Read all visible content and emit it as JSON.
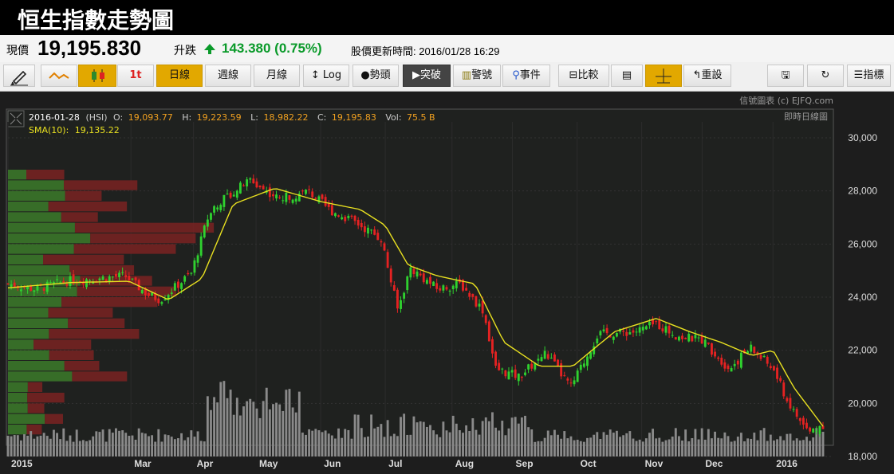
{
  "header": {
    "title": "恒生指數走勢圖"
  },
  "quote": {
    "price_label": "現價",
    "price": "19,195.830",
    "change_label": "升跌",
    "change": "143.380 (0.75%)",
    "update_label": "股價更新時間: 2016/01/28 16:29"
  },
  "toolbar": {
    "buttons": [
      "日線",
      "週線",
      "月線",
      "Log",
      "勢頭",
      "突破",
      "警號",
      "事件",
      "比較",
      "重設",
      "指標"
    ],
    "candle_label": "1t"
  },
  "chart_meta": {
    "credit": "信號圖表 (c) EJFQ.com",
    "chart_mode": "即時日線圖",
    "ohlc_line": {
      "date": "2016-01-28",
      "symbol": "(HSI)",
      "o_label": "O:",
      "o": "19,093.77",
      "h_label": "H:",
      "h": "19,223.59",
      "l_label": "L:",
      "l": "18,982.22",
      "c_label": "C:",
      "c": "19,195.83",
      "vol_label": "Vol:",
      "vol": "75.5 B"
    },
    "sma_label": "SMA(10):",
    "sma_value": "19,135.22"
  },
  "colors": {
    "up": "#2fd12f",
    "down": "#e52222",
    "sma": "#e8e020",
    "vp_up": "#3c7a2a",
    "vp_down": "#7a2222",
    "volume": "#8a8a8a"
  },
  "chart_data": {
    "type": "candlestick",
    "series": [
      {
        "name": "HSI"
      },
      {
        "name": "SMA(10)"
      }
    ],
    "ylim": [
      18000,
      30000
    ],
    "y_ticks": [
      "18,000",
      "20,000",
      "22,000",
      "24,000",
      "26,000",
      "28,000",
      "30,000"
    ],
    "x_ticks": [
      "2015",
      "Mar",
      "Apr",
      "May",
      "Jun",
      "Jul",
      "Aug",
      "Sep",
      "Oct",
      "Nov",
      "Dec",
      "2016"
    ],
    "x_range": [
      "2015-01-02",
      "2016-01-28"
    ],
    "month_starts": [
      "2015-01-02",
      "2015-03-02",
      "2015-04-01",
      "2015-05-01",
      "2015-06-01",
      "2015-07-02",
      "2015-08-03",
      "2015-09-01",
      "2015-10-02",
      "2015-11-02",
      "2015-12-01",
      "2016-01-04"
    ],
    "close_path": [
      [
        "2015-01-02",
        24500
      ],
      [
        "2015-01-15",
        24300
      ],
      [
        "2015-01-30",
        24600
      ],
      [
        "2015-02-12",
        24700
      ],
      [
        "2015-02-27",
        24800
      ],
      [
        "2015-03-10",
        24100
      ],
      [
        "2015-03-16",
        23900
      ],
      [
        "2015-03-31",
        24900
      ],
      [
        "2015-04-09",
        27300
      ],
      [
        "2015-04-17",
        27800
      ],
      [
        "2015-04-28",
        28400
      ],
      [
        "2015-05-12",
        27700
      ],
      [
        "2015-05-26",
        28000
      ],
      [
        "2015-06-05",
        27300
      ],
      [
        "2015-06-18",
        26800
      ],
      [
        "2015-06-30",
        26200
      ],
      [
        "2015-07-08",
        23500
      ],
      [
        "2015-07-14",
        25100
      ],
      [
        "2015-07-27",
        24300
      ],
      [
        "2015-08-07",
        24500
      ],
      [
        "2015-08-18",
        23500
      ],
      [
        "2015-08-24",
        21300
      ],
      [
        "2015-09-04",
        21000
      ],
      [
        "2015-09-17",
        21900
      ],
      [
        "2015-09-29",
        20600
      ],
      [
        "2015-10-12",
        22600
      ],
      [
        "2015-10-30",
        22700
      ],
      [
        "2015-11-09",
        23000
      ],
      [
        "2015-11-20",
        22500
      ],
      [
        "2015-12-01",
        22400
      ],
      [
        "2015-12-14",
        21300
      ],
      [
        "2015-12-24",
        22100
      ],
      [
        "2016-01-04",
        21300
      ],
      [
        "2016-01-12",
        19900
      ],
      [
        "2016-01-21",
        18900
      ],
      [
        "2016-01-28",
        19195.83
      ]
    ],
    "sma_path": [
      [
        "2015-01-02",
        24350
      ],
      [
        "2015-02-01",
        24550
      ],
      [
        "2015-03-01",
        24600
      ],
      [
        "2015-03-20",
        23900
      ],
      [
        "2015-04-05",
        24700
      ],
      [
        "2015-04-20",
        27500
      ],
      [
        "2015-05-10",
        28100
      ],
      [
        "2015-06-01",
        27600
      ],
      [
        "2015-06-20",
        27300
      ],
      [
        "2015-07-02",
        26700
      ],
      [
        "2015-07-13",
        25200
      ],
      [
        "2015-07-27",
        24800
      ],
      [
        "2015-08-14",
        24500
      ],
      [
        "2015-08-28",
        22300
      ],
      [
        "2015-09-14",
        21400
      ],
      [
        "2015-09-30",
        21400
      ],
      [
        "2015-10-20",
        22700
      ],
      [
        "2015-11-09",
        23200
      ],
      [
        "2015-11-25",
        22700
      ],
      [
        "2015-12-10",
        22300
      ],
      [
        "2015-12-25",
        21800
      ],
      [
        "2016-01-04",
        22000
      ],
      [
        "2016-01-14",
        20600
      ],
      [
        "2016-01-28",
        19135.22
      ]
    ],
    "volume_profile_note": "horizontal volume-by-price bars on left"
  }
}
